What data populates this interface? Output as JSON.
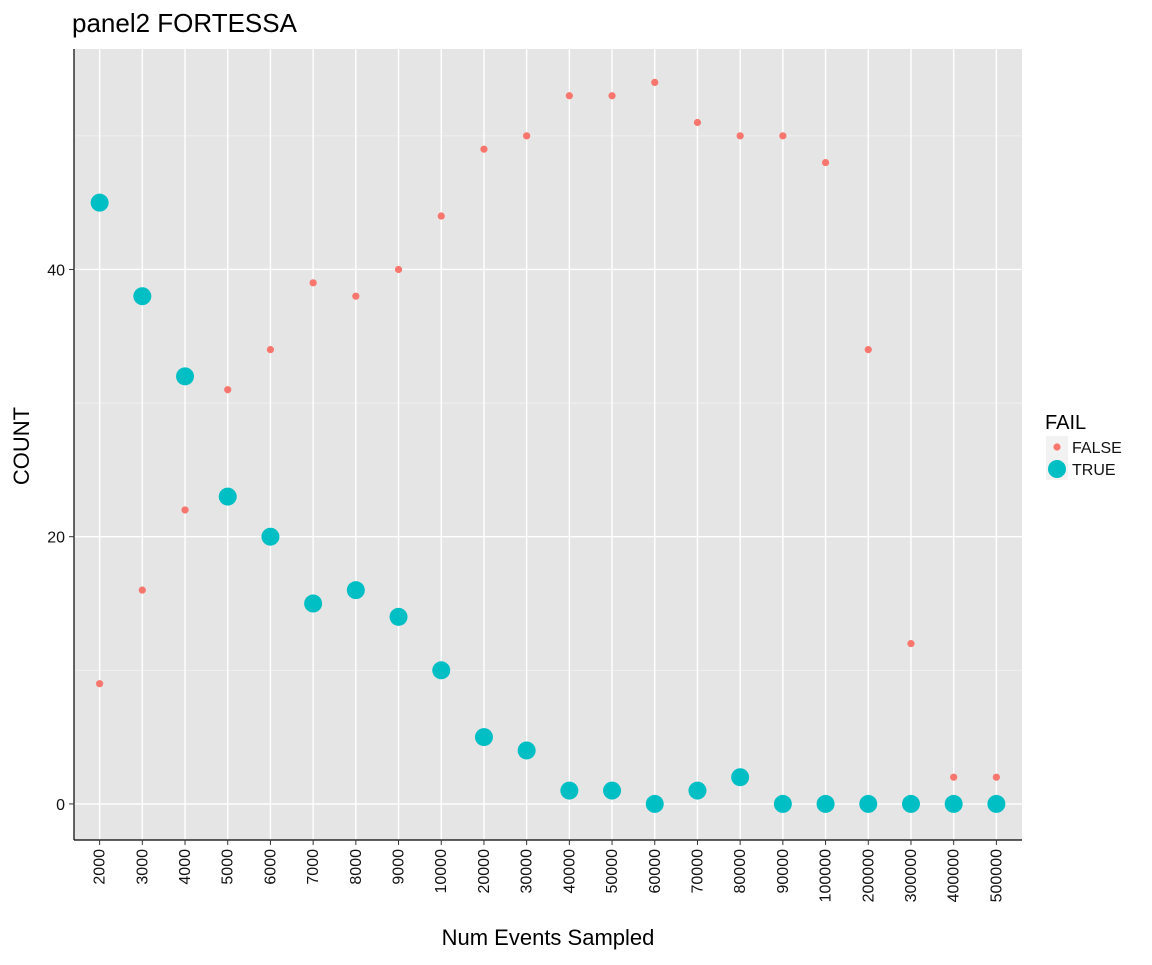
{
  "chart_data": {
    "type": "scatter",
    "title": "panel2 FORTESSA",
    "xlabel": "Num Events Sampled",
    "ylabel": "COUNT",
    "categories": [
      "2000",
      "3000",
      "4000",
      "5000",
      "6000",
      "7000",
      "8000",
      "9000",
      "10000",
      "20000",
      "30000",
      "40000",
      "50000",
      "60000",
      "70000",
      "80000",
      "90000",
      "100000",
      "200000",
      "300000",
      "400000",
      "500000"
    ],
    "ylim": [
      -2.7,
      56.5
    ],
    "yticks": [
      0,
      20,
      40
    ],
    "grid": true,
    "legend_title": "FAIL",
    "legend_position": "right",
    "series": [
      {
        "name": "FALSE",
        "color": "#F8766D",
        "size": "small",
        "values": [
          9,
          16,
          22,
          31,
          34,
          39,
          38,
          40,
          44,
          49,
          50,
          53,
          53,
          54,
          51,
          50,
          50,
          48,
          34,
          12,
          2,
          2
        ]
      },
      {
        "name": "TRUE",
        "color": "#00BFC4",
        "size": "large",
        "values": [
          45,
          38,
          32,
          23,
          20,
          15,
          16,
          14,
          10,
          5,
          4,
          1,
          1,
          0,
          1,
          2,
          0,
          0,
          0,
          0,
          0,
          0
        ]
      }
    ]
  },
  "colors": {
    "panel_bg": "#E5E5E5",
    "grid": "#FFFFFF"
  }
}
